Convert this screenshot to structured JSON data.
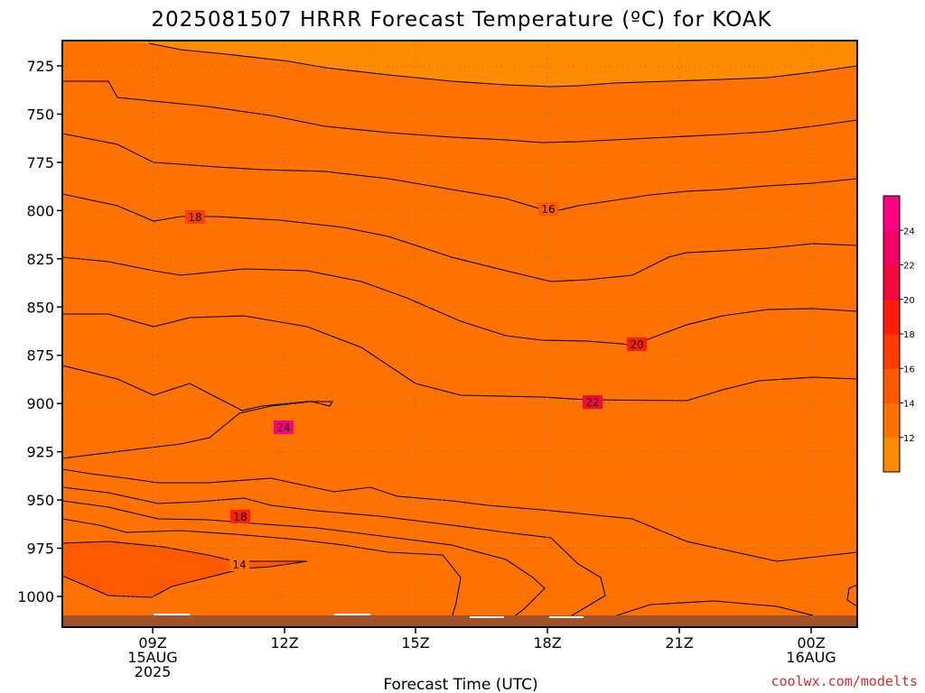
{
  "chart_data": {
    "type": "heatmap",
    "title": "2025081507 HRRR Forecast Temperature (ºC) for KOAK",
    "xlabel": "Forecast Time (UTC)",
    "ylabel": "",
    "y_ticks": [
      "725",
      "750",
      "775",
      "800",
      "825",
      "850",
      "875",
      "900",
      "925",
      "950",
      "975",
      "1000"
    ],
    "x_ticks": [
      {
        "line1": "09Z",
        "line2": "15AUG",
        "line3": "2025"
      },
      {
        "line1": "12Z",
        "line2": "",
        "line3": ""
      },
      {
        "line1": "15Z",
        "line2": "",
        "line3": ""
      },
      {
        "line1": "18Z",
        "line2": "",
        "line3": ""
      },
      {
        "line1": "21Z",
        "line2": "",
        "line3": ""
      },
      {
        "line1": "00Z",
        "line2": "16AUG",
        "line3": ""
      }
    ],
    "colorbar_labels": [
      "12",
      "14",
      "16",
      "18",
      "20",
      "22",
      "24"
    ],
    "colorbar_colors": [
      "#ff8c00",
      "#ff7200",
      "#ff5a00",
      "#ff3c00",
      "#ff1c0a",
      "#f5083c",
      "#f50064",
      "#ff0082"
    ],
    "contour_labels": [
      "18",
      "16",
      "20",
      "22",
      "24",
      "18",
      "14"
    ],
    "contour_interval_c": 2,
    "grid": true,
    "colorbar_position": "right"
  },
  "credit": "coolwx.com/modelts"
}
